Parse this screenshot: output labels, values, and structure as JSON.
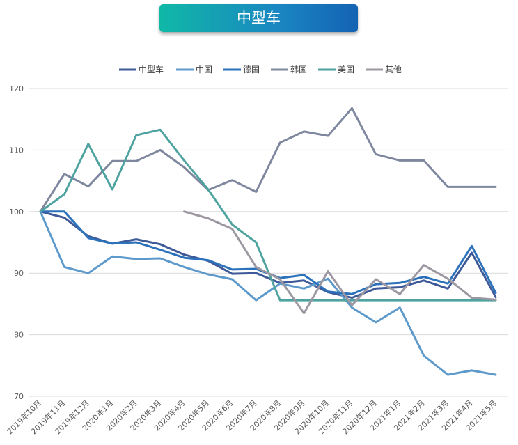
{
  "chart_data": {
    "type": "line",
    "title": "中型车",
    "xlabel": "",
    "ylabel": "",
    "ylim": [
      70,
      120
    ],
    "yticks": [
      70,
      80,
      90,
      100,
      110,
      120
    ],
    "grid": true,
    "legend_position": "top-center",
    "categories": [
      "2019年10月",
      "2019年11月",
      "2019年12月",
      "2020年1月",
      "2020年2月",
      "2020年3月",
      "2020年4月",
      "2020年5月",
      "2020年6月",
      "2020年7月",
      "2020年8月",
      "2020年9月",
      "2020年10月",
      "2020年11月",
      "2020年12月",
      "2021年1月",
      "2021年2月",
      "2021年3月",
      "2021年4月",
      "2021年5月"
    ],
    "series": [
      {
        "name": "中型车",
        "color": "#3f5a99",
        "values": [
          100,
          99,
          96,
          94.8,
          95.5,
          94.7,
          93,
          92,
          89.9,
          90,
          88.4,
          88.8,
          86.9,
          86,
          87.5,
          87.7,
          88.8,
          87.5,
          93.3,
          86.1
        ]
      },
      {
        "name": "中国",
        "color": "#5d9acb",
        "values": [
          100,
          91,
          90,
          92.7,
          92.3,
          92.4,
          91,
          89.8,
          89,
          85.6,
          88.3,
          87.5,
          89.1,
          84.4,
          82,
          84.4,
          76.6,
          73.5,
          74.2,
          73.5
        ]
      },
      {
        "name": "德国",
        "color": "#2c72ba",
        "values": [
          100,
          100,
          95.7,
          94.8,
          95,
          93.8,
          92.5,
          92.1,
          90.6,
          90.7,
          89.2,
          89.7,
          87,
          86.6,
          88.2,
          88.4,
          89.4,
          88.3,
          94.4,
          86.8
        ]
      },
      {
        "name": "韩国",
        "color": "#7e879e",
        "values": [
          100,
          106.1,
          104.1,
          108.2,
          108.2,
          110,
          107.2,
          103.5,
          105.1,
          103.2,
          111.2,
          113,
          112.3,
          116.8,
          109.3,
          108.3,
          108.3,
          104,
          104,
          104
        ]
      },
      {
        "name": "美国",
        "color": "#4ea3a0",
        "values": [
          100,
          102.8,
          111,
          103.6,
          112.4,
          113.3,
          108.3,
          103.6,
          97.9,
          95,
          85.6,
          85.6,
          85.6,
          85.6,
          85.6,
          85.6,
          85.6,
          85.6,
          85.6,
          85.6
        ]
      },
      {
        "name": "其他",
        "color": "#9c97a0",
        "values": [
          null,
          null,
          null,
          null,
          null,
          null,
          100,
          98.9,
          97.2,
          91,
          89,
          83.5,
          90.3,
          84.8,
          89,
          86.6,
          91.3,
          89.1,
          86,
          85.7
        ]
      }
    ]
  }
}
